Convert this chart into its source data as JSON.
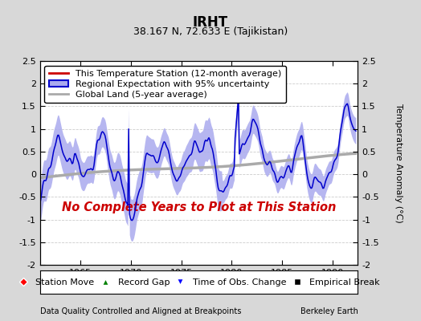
{
  "title": "IRHT",
  "subtitle": "38.167 N, 72.633 E (Tajikistan)",
  "ylabel": "Temperature Anomaly (°C)",
  "xlim": [
    1961.0,
    1992.5
  ],
  "ylim": [
    -2.0,
    2.5
  ],
  "yticks": [
    -2,
    -1.5,
    -1,
    -0.5,
    0,
    0.5,
    1,
    1.5,
    2,
    2.5
  ],
  "xticks": [
    1965,
    1970,
    1975,
    1980,
    1985,
    1990
  ],
  "footer_left": "Data Quality Controlled and Aligned at Breakpoints",
  "footer_right": "Berkeley Earth",
  "annotation": "No Complete Years to Plot at This Station",
  "annotation_color": "#cc0000",
  "bg_color": "#d8d8d8",
  "plot_bg_color": "#ffffff",
  "regional_color": "#0000cc",
  "regional_fill_color": "#aaaaee",
  "global_color": "#aaaaaa",
  "station_color": "#cc0000",
  "grid_color": "#cccccc",
  "legend_fontsize": 8,
  "tick_fontsize": 8,
  "title_fontsize": 12,
  "subtitle_fontsize": 9
}
